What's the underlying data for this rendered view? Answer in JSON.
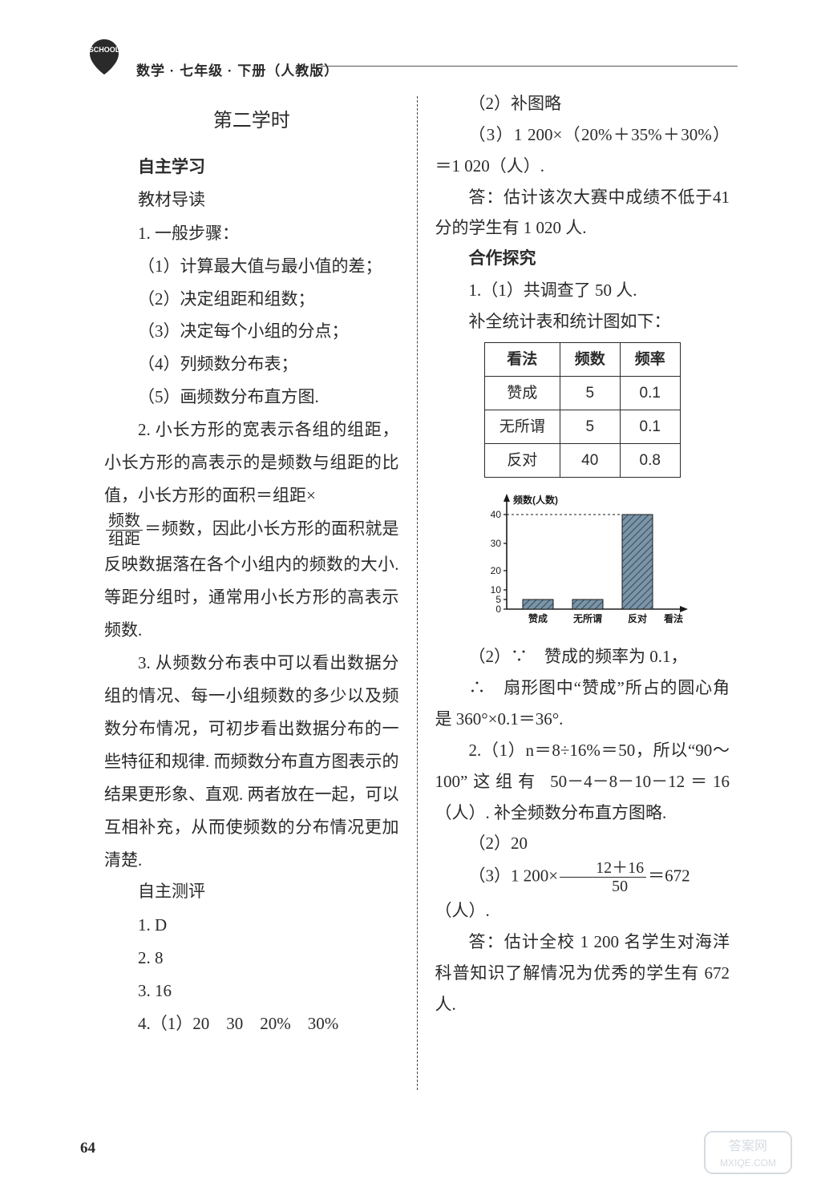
{
  "header": {
    "subject": "数学 · 七年级 · 下册（人教版）"
  },
  "left": {
    "section_title": "第二学时",
    "h1": "自主学习",
    "h2": "教材导读",
    "q1_lead": "1. 一般步骤：",
    "q1_1": "（1）计算最大值与最小值的差；",
    "q1_2": "（2）决定组距和组数；",
    "q1_3": "（3）决定每个小组的分点；",
    "q1_4": "（4）列频数分布表；",
    "q1_5": "（5）画频数分布直方图.",
    "q2_a": "2. 小长方形的宽表示各组的组距，小长方形的高表示的是频数与组距的比值，小长方形的面积＝组距×",
    "q2_frac_num": "频数",
    "q2_frac_den": "组距",
    "q2_b": "＝频数，因此小长方形的面积就是反映数据落在各个小组内的频数的大小. 等距分组时，通常用小长方形的高表示频数.",
    "q3": "3. 从频数分布表中可以看出数据分组的情况、每一小组频数的多少以及频数分布情况，可初步看出数据分布的一些特征和规律. 而频数分布直方图表示的结果更形象、直观. 两者放在一起，可以互相补充，从而使频数的分布情况更加清楚.",
    "h3": "自主测评",
    "a1": "1. D",
    "a2": "2. 8",
    "a3": "3. 16",
    "a4": "4.（1）20　30　20%　30%"
  },
  "right": {
    "r1": "（2）补图略",
    "r2": "（3）1 200×（20%＋35%＋30%）＝1 020（人）.",
    "r3": "答：估计该次大赛中成绩不低于41分的学生有 1 020 人.",
    "h1": "合作探究",
    "c1_1": "1.（1）共调查了 50 人.",
    "c1_2": "补全统计表和统计图如下：",
    "table": {
      "headers": [
        "看法",
        "频数",
        "频率"
      ],
      "rows": [
        [
          "赞成",
          "5",
          "0.1"
        ],
        [
          "无所谓",
          "5",
          "0.1"
        ],
        [
          "反对",
          "40",
          "0.8"
        ]
      ]
    },
    "chart": {
      "ylabel": "频数(人数)",
      "xlabel": "看法",
      "categories": [
        "赞成",
        "无所谓",
        "反对"
      ],
      "values": [
        5,
        5,
        40
      ],
      "yticks": [
        0,
        5,
        10,
        20,
        30,
        40
      ],
      "yt_labels": [
        "0",
        "5",
        "10",
        "20",
        "30",
        "40"
      ],
      "bar_fill": "#7a94a8",
      "bar_hatch": "#3a4a58",
      "axis_color": "#1a1a1a",
      "bg": "#ffffff"
    },
    "c2_a": "（2）∵　赞成的频率为 0.1，",
    "c2_b": "∴　扇形图中“赞成”所占的圆心角是 360°×0.1＝36°.",
    "c3_1": "2.（1）n＝8÷16%＝50，所以“90～100”这组有 50－4－8－10－12＝16（人）. 补全频数分布直方图略.",
    "c3_2": "（2）20",
    "c3_3a": "（3）1 200×",
    "c3_frac_num": "12＋16",
    "c3_frac_den": "50",
    "c3_3b": "＝672（人）.",
    "c4": "答：估计全校 1 200 名学生对海洋科普知识了解情况为优秀的学生有 672 人."
  },
  "pagenum": "64",
  "watermark": {
    "line1": "答案网",
    "line2": "MXIQE.COM"
  }
}
